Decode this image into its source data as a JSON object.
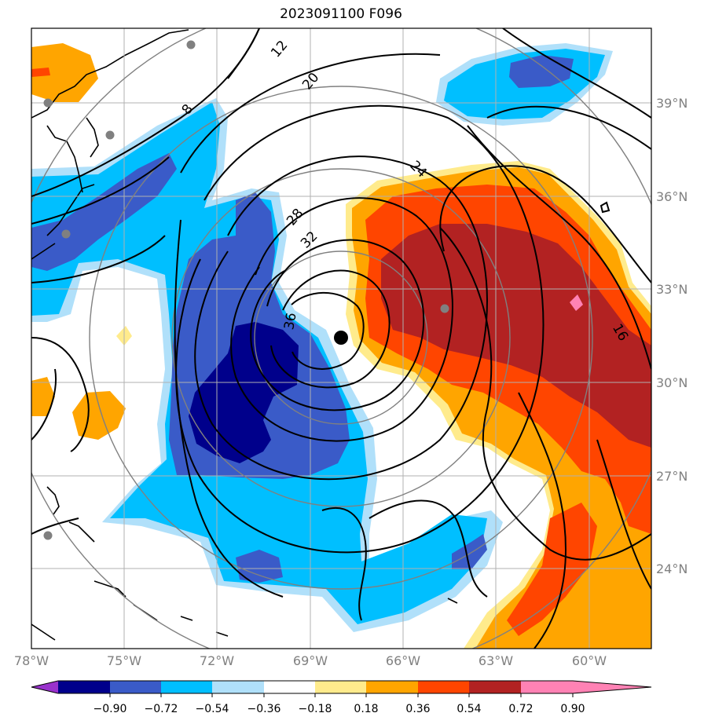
{
  "title": "2023091100 F096",
  "map": {
    "lon_ticks": [
      "78°W",
      "75°W",
      "72°W",
      "69°W",
      "66°W",
      "63°W",
      "60°W"
    ],
    "lat_ticks": [
      "39°N",
      "36°N",
      "33°N",
      "30°N",
      "27°N",
      "24°N"
    ],
    "contour_labels": [
      "8",
      "12",
      "20",
      "24",
      "28",
      "32",
      "36",
      "16"
    ],
    "fill_colors": {
      "neg_extreme": "#00008b",
      "neg_strong": "#3a5bc8",
      "neg_mid": "#00bfff",
      "neg_weak": "#b0e0fa",
      "pos_weak": "#ffeb8c",
      "pos_mid": "#ffa500",
      "pos_strong": "#ff4500",
      "pos_extreme": "#b22222",
      "pos_max": "#ff82b4"
    }
  },
  "colorbar": {
    "ticks": [
      "−0.90",
      "−0.72",
      "−0.54",
      "−0.36",
      "−0.18",
      "0.18",
      "0.36",
      "0.54",
      "0.72",
      "0.90"
    ],
    "colors": [
      "#9932cc",
      "#00008b",
      "#3a5bc8",
      "#00bfff",
      "#b0e0fa",
      "#ffffff",
      "#ffeb8c",
      "#ffa500",
      "#ff4500",
      "#b22222",
      "#ff82b4"
    ]
  }
}
